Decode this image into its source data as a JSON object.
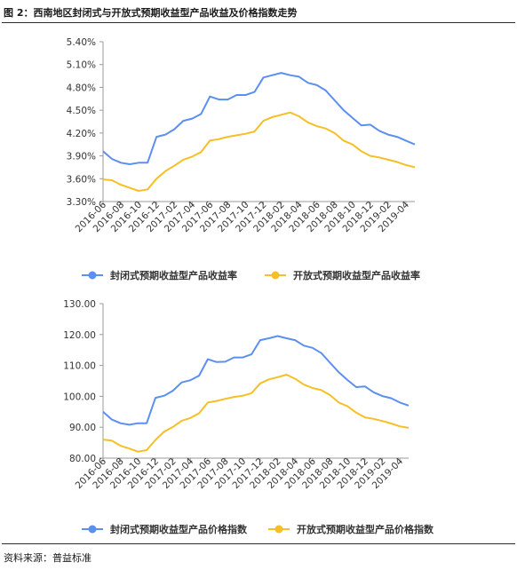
{
  "figure_title": "图 2：西南地区封闭式与开放式预期收益型产品收益及价格指数走势",
  "source_note": "资料来源：普益标准",
  "colors": {
    "closed": "#5b8ff0",
    "open": "#f6bf26",
    "axis": "#999999"
  },
  "chart_data": [
    {
      "type": "line",
      "x": [
        "2016-06",
        "2016-07",
        "2016-08",
        "2016-09",
        "2016-10",
        "2016-11",
        "2016-12",
        "2017-01",
        "2017-02",
        "2017-03",
        "2017-04",
        "2017-05",
        "2017-06",
        "2017-07",
        "2017-08",
        "2017-09",
        "2017-10",
        "2017-11",
        "2017-12",
        "2018-01",
        "2018-02",
        "2018-03",
        "2018-04",
        "2018-05",
        "2018-06",
        "2018-07",
        "2018-08",
        "2018-09",
        "2018-10",
        "2018-11",
        "2018-12",
        "2019-01",
        "2019-02",
        "2019-03",
        "2019-04",
        "2019-05"
      ],
      "xticklabels": [
        "2016-06",
        "2016-08",
        "2016-10",
        "2016-12",
        "2017-02",
        "2017-04",
        "2017-06",
        "2017-08",
        "2017-10",
        "2017-12",
        "2018-02",
        "2018-04",
        "2018-06",
        "2018-08",
        "2018-10",
        "2018-12",
        "2019-02",
        "2019-04"
      ],
      "yticklabels": [
        "3.30%",
        "3.60%",
        "3.90%",
        "4.20%",
        "4.50%",
        "4.80%",
        "5.10%",
        "5.40%"
      ],
      "ylim": [
        3.3,
        5.4
      ],
      "series": [
        {
          "name": "封闭式预期收益型产品收益率",
          "values": [
            3.96,
            3.86,
            3.81,
            3.79,
            3.81,
            3.81,
            4.15,
            4.18,
            4.25,
            4.36,
            4.39,
            4.45,
            4.68,
            4.64,
            4.64,
            4.7,
            4.7,
            4.74,
            4.93,
            4.96,
            4.99,
            4.96,
            4.94,
            4.86,
            4.83,
            4.76,
            4.63,
            4.5,
            4.4,
            4.3,
            4.31,
            4.23,
            4.18,
            4.15,
            4.1,
            4.05
          ]
        },
        {
          "name": "开放式预期收益型产品收益率",
          "values": [
            3.59,
            3.58,
            3.52,
            3.48,
            3.44,
            3.46,
            3.6,
            3.7,
            3.77,
            3.85,
            3.89,
            3.95,
            4.1,
            4.12,
            4.15,
            4.17,
            4.19,
            4.22,
            4.36,
            4.41,
            4.44,
            4.47,
            4.42,
            4.34,
            4.29,
            4.26,
            4.2,
            4.1,
            4.05,
            3.96,
            3.9,
            3.88,
            3.85,
            3.82,
            3.78,
            3.75
          ]
        }
      ]
    },
    {
      "type": "line",
      "x": [
        "2016-06",
        "2016-07",
        "2016-08",
        "2016-09",
        "2016-10",
        "2016-11",
        "2016-12",
        "2017-01",
        "2017-02",
        "2017-03",
        "2017-04",
        "2017-05",
        "2017-06",
        "2017-07",
        "2017-08",
        "2017-09",
        "2017-10",
        "2017-11",
        "2017-12",
        "2018-01",
        "2018-02",
        "2018-03",
        "2018-04",
        "2018-05",
        "2018-06",
        "2018-07",
        "2018-08",
        "2018-09",
        "2018-10",
        "2018-11",
        "2018-12",
        "2019-01",
        "2019-02",
        "2019-03",
        "2019-04",
        "2019-05"
      ],
      "xticklabels": [
        "2016-06",
        "2016-08",
        "2016-10",
        "2016-12",
        "2017-02",
        "2017-04",
        "2017-06",
        "2017-08",
        "2017-10",
        "2017-12",
        "2018-02",
        "2018-04",
        "2018-06",
        "2018-08",
        "2018-10",
        "2018-12",
        "2019-02",
        "2019-04"
      ],
      "yticklabels": [
        "80.00",
        "90.00",
        "100.00",
        "110.00",
        "120.00",
        "130.00"
      ],
      "ylim": [
        80,
        130
      ],
      "series": [
        {
          "name": "封闭式预期收益型产品价格指数",
          "values": [
            95.0,
            92.5,
            91.3,
            90.8,
            91.3,
            91.3,
            99.5,
            100.2,
            101.8,
            104.5,
            105.2,
            106.7,
            112.0,
            111.1,
            111.2,
            112.6,
            112.6,
            113.6,
            118.2,
            118.8,
            119.5,
            118.8,
            118.2,
            116.4,
            115.7,
            114.0,
            110.9,
            107.8,
            105.3,
            103.0,
            103.2,
            101.3,
            100.1,
            99.4,
            98.0,
            97.0
          ]
        },
        {
          "name": "开放式预期收益型产品价格指数",
          "values": [
            86.0,
            85.7,
            84.0,
            83.1,
            82.1,
            82.6,
            85.9,
            88.6,
            90.1,
            92.1,
            93.0,
            94.5,
            98.0,
            98.5,
            99.2,
            99.8,
            100.2,
            101.0,
            104.2,
            105.5,
            106.2,
            107.0,
            105.7,
            103.8,
            102.7,
            102.0,
            100.4,
            98.0,
            96.8,
            94.7,
            93.2,
            92.7,
            92.0,
            91.2,
            90.3,
            89.8
          ]
        }
      ]
    }
  ]
}
